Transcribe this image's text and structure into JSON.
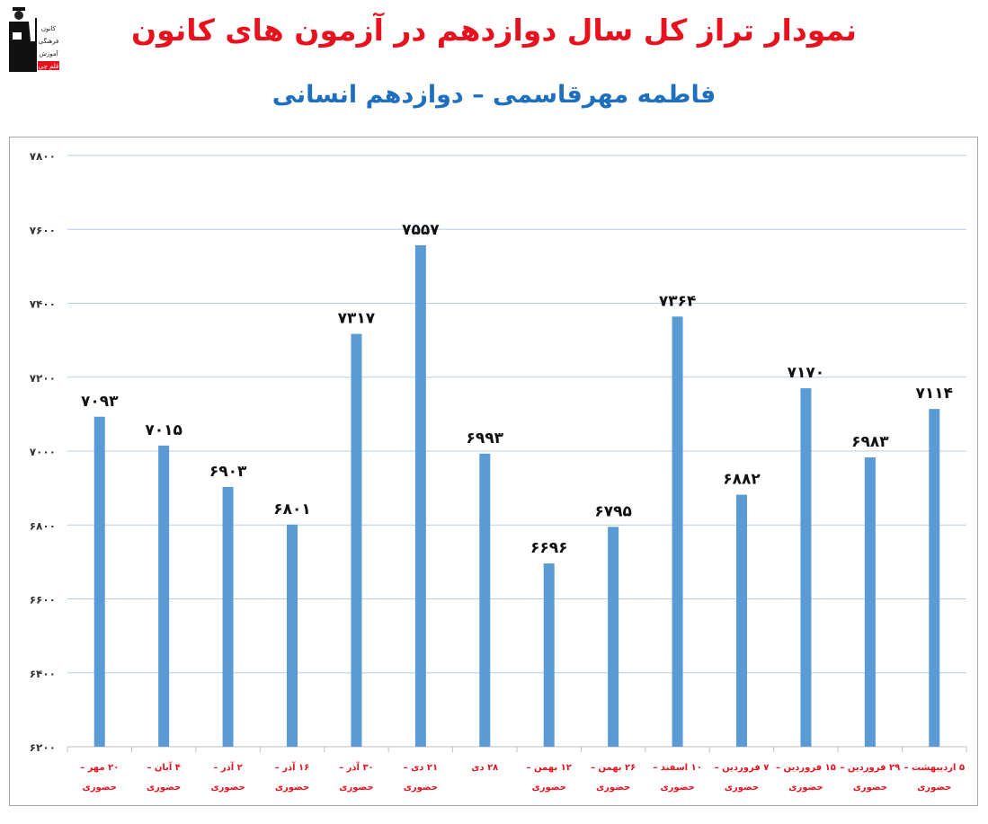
{
  "logo": {
    "text": [
      "کانون",
      "فرهنگی",
      "آموزش",
      "قلم چی"
    ]
  },
  "chart_data": {
    "type": "bar",
    "title": "نمودار تراز کل سال دوازدهم در آزمون های کانون",
    "subtitle": "فاطمه مهرقاسمی – دوازدهم انسانی",
    "categories": [
      [
        "۲۰ مهر –",
        "حضوری"
      ],
      [
        "۴ آبان –",
        "حضوری"
      ],
      [
        "۲ آذر –",
        "حضوری"
      ],
      [
        "۱۶ آذر –",
        "حضوری"
      ],
      [
        "۳۰ آذر –",
        "حضوری"
      ],
      [
        "۲۱ دی –",
        "حضوری"
      ],
      [
        "۲۸ دی",
        ""
      ],
      [
        "۱۲ بهمن –",
        "حضوری"
      ],
      [
        "۲۶ بهمن –",
        "حضوری"
      ],
      [
        "۱۰ اسفند –",
        "حضوری"
      ],
      [
        "۷ فروردین –",
        "حضوری"
      ],
      [
        "۱۵ فروردین –",
        "حضوری"
      ],
      [
        "۲۹ فروردین –",
        "حضوری"
      ],
      [
        "۵ اردیبهشت –",
        "حضوری"
      ]
    ],
    "values": [
      7093,
      7015,
      6903,
      6801,
      7317,
      7557,
      6993,
      6696,
      6795,
      7364,
      6882,
      7170,
      6983,
      7114
    ],
    "data_labels": [
      "۷۰۹۳",
      "۷۰۱۵",
      "۶۹۰۳",
      "۶۸۰۱",
      "۷۳۱۷",
      "۷۵۵۷",
      "۶۹۹۳",
      "۶۶۹۶",
      "۶۷۹۵",
      "۷۳۶۴",
      "۶۸۸۲",
      "۷۱۷۰",
      "۶۹۸۳",
      "۷۱۱۴"
    ],
    "ylim": [
      6200,
      7800
    ],
    "yticks": [
      6200,
      6400,
      6600,
      6800,
      7000,
      7200,
      7400,
      7600,
      7800
    ],
    "ytick_labels": [
      "۶۲۰۰",
      "۶۴۰۰",
      "۶۶۰۰",
      "۶۸۰۰",
      "۷۰۰۰",
      "۷۲۰۰",
      "۷۴۰۰",
      "۷۶۰۰",
      "۷۸۰۰"
    ],
    "grid": true,
    "colors": {
      "bar": "#5b9bd5",
      "grid": "#b7cde8",
      "xlabel": "#e8121e",
      "title": "#e8121e",
      "subtitle": "#1f6fbf"
    }
  }
}
